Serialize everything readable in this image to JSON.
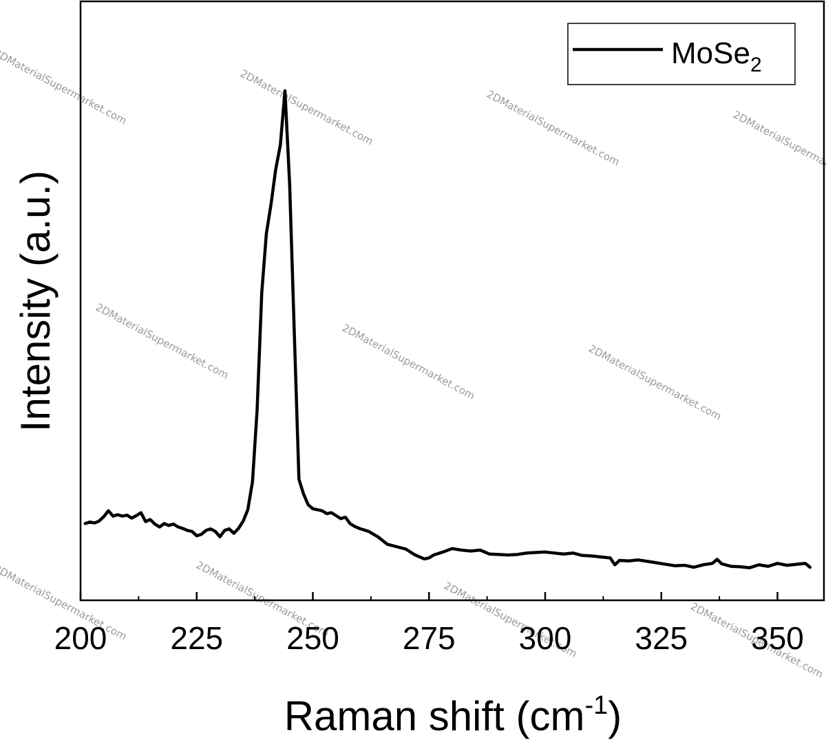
{
  "chart_data": {
    "type": "line",
    "xlabel": "Raman shift (cm",
    "xlabel_sup": "-1",
    "xlabel_end": ")",
    "ylabel": "Intensity (a.u.)",
    "xlim": [
      200,
      360
    ],
    "ylim": [
      0,
      100
    ],
    "x_ticks": [
      200,
      225,
      250,
      275,
      300,
      325,
      350
    ],
    "x_tick_labels": [
      "200",
      "225",
      "250",
      "275",
      "300",
      "325",
      "350"
    ],
    "y_ticks_labeled": false,
    "grid": false,
    "legend_position": "top-right",
    "series": [
      {
        "name": "MoSe",
        "name_sub": "2",
        "color": "#000000",
        "x": [
          201,
          202,
          203,
          204,
          205,
          206,
          207,
          208,
          209,
          210,
          211,
          212,
          213,
          214,
          215,
          216,
          217,
          218,
          219,
          220,
          221,
          222,
          223,
          224,
          225,
          226,
          227,
          228,
          229,
          230,
          231,
          232,
          233,
          234,
          235,
          236,
          237,
          238,
          239,
          240,
          241,
          242,
          243,
          244,
          245,
          246,
          247,
          248,
          249,
          250,
          251,
          252,
          253,
          254,
          255,
          256,
          257,
          258,
          259,
          260,
          262,
          264,
          266,
          268,
          270,
          272,
          274,
          275,
          276,
          278,
          280,
          282,
          284,
          286,
          288,
          290,
          292,
          294,
          296,
          298,
          300,
          302,
          304,
          306,
          308,
          310,
          312,
          314,
          315,
          316,
          318,
          320,
          322,
          324,
          326,
          328,
          330,
          332,
          334,
          336,
          337,
          338,
          340,
          342,
          344,
          346,
          348,
          350,
          352,
          354,
          356,
          357
        ],
        "y": [
          11.0,
          11.3,
          11.1,
          11.5,
          12.4,
          13.6,
          12.5,
          12.8,
          12.5,
          12.7,
          12.1,
          12.6,
          13.2,
          11.4,
          11.8,
          10.9,
          10.3,
          11.0,
          10.6,
          10.9,
          10.3,
          10.0,
          9.6,
          9.4,
          8.5,
          8.8,
          9.6,
          9.9,
          9.4,
          8.3,
          9.6,
          9.9,
          9.0,
          10.0,
          11.5,
          13.8,
          19.5,
          34.0,
          58.0,
          70.0,
          76.0,
          83.0,
          88.0,
          99.0,
          80.0,
          50.0,
          20.0,
          17.0,
          14.8,
          14.0,
          13.8,
          13.6,
          13.0,
          13.2,
          12.6,
          12.0,
          12.3,
          11.0,
          10.4,
          10.0,
          9.4,
          8.3,
          6.8,
          6.3,
          5.8,
          4.6,
          3.8,
          4.0,
          4.6,
          5.2,
          5.9,
          5.6,
          5.4,
          5.6,
          4.8,
          4.7,
          4.6,
          4.7,
          5.0,
          5.1,
          5.2,
          5.0,
          4.8,
          5.0,
          4.5,
          4.4,
          4.2,
          4.0,
          2.6,
          3.5,
          3.4,
          3.6,
          3.3,
          3.0,
          2.7,
          2.4,
          2.5,
          2.1,
          2.6,
          2.9,
          3.7,
          2.8,
          2.3,
          2.2,
          2.0,
          2.6,
          2.3,
          2.9,
          2.5,
          2.7,
          2.9,
          2.1
        ]
      }
    ],
    "watermark": "2DMaterialSupermarket.com"
  }
}
